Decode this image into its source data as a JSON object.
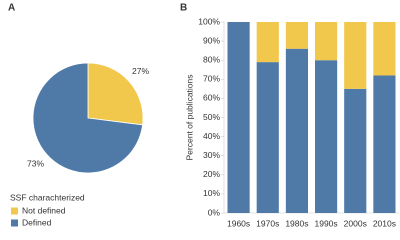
{
  "chart_data": [
    {
      "type": "pie",
      "panel": "A",
      "legend_title": "SSF charachterized",
      "categories": [
        "Not defined",
        "Defined"
      ],
      "values": [
        27,
        73
      ],
      "value_labels": [
        "27%",
        "73%"
      ],
      "colors": [
        "#f1c84b",
        "#4f7aa8"
      ]
    },
    {
      "type": "bar",
      "panel": "B",
      "ylabel": "Percent of publications",
      "stacked": true,
      "categories": [
        "1960s",
        "1970s",
        "1980s",
        "1990s",
        "2000s",
        "2010s"
      ],
      "series": [
        {
          "name": "Defined",
          "color": "#4f7aa8",
          "values": [
            100,
            79,
            86,
            80,
            65,
            72
          ]
        },
        {
          "name": "Not defined",
          "color": "#f1c84b",
          "values": [
            0,
            21,
            14,
            20,
            35,
            28
          ]
        }
      ],
      "ylim": [
        0,
        100
      ],
      "yticks": [
        {
          "value": 0,
          "label": "0%"
        },
        {
          "value": 10,
          "label": "10%"
        },
        {
          "value": 20,
          "label": "20%"
        },
        {
          "value": 30,
          "label": "30%"
        },
        {
          "value": 40,
          "label": "40%"
        },
        {
          "value": 50,
          "label": "50%"
        },
        {
          "value": 60,
          "label": "60%"
        },
        {
          "value": 70,
          "label": "70%"
        },
        {
          "value": 80,
          "label": "80%"
        },
        {
          "value": 90,
          "label": "90%"
        },
        {
          "value": 100,
          "label": "100%"
        }
      ]
    }
  ]
}
